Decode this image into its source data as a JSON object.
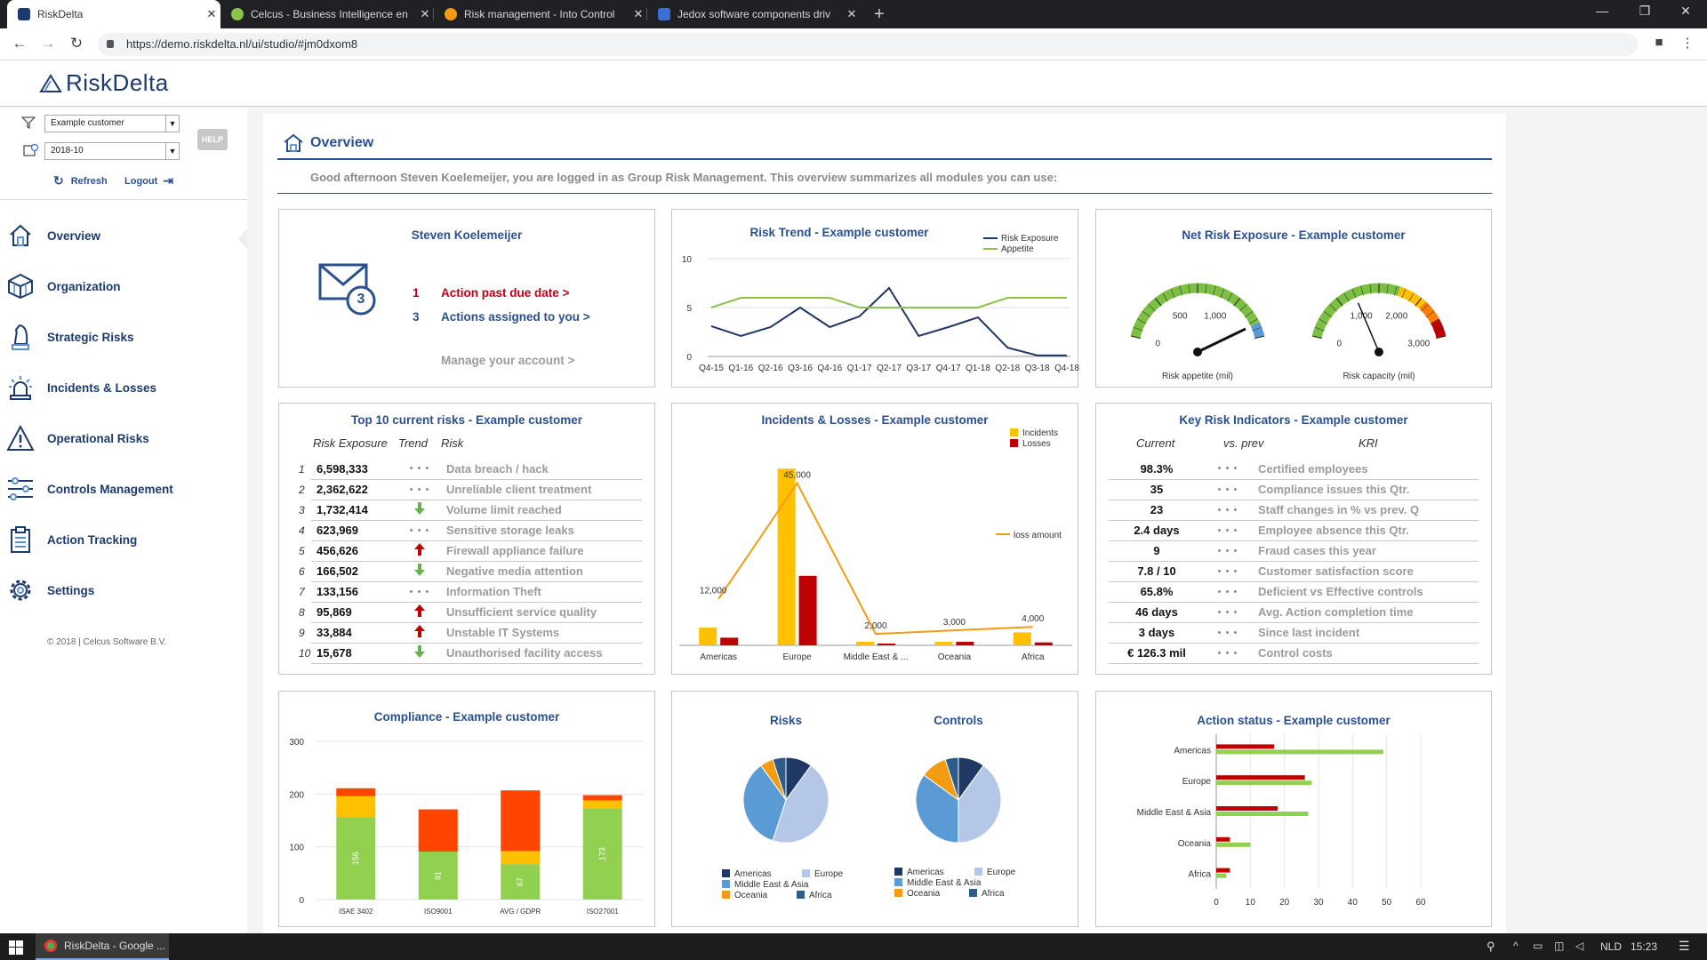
{
  "browser": {
    "tabs": [
      {
        "title": "RiskDelta",
        "active": true,
        "icon": "riskdelta-favicon",
        "color": "#1c3a6e"
      },
      {
        "title": "Celcus - Business Intelligence en",
        "active": false,
        "icon": "celcus-favicon",
        "color": "#8bc34a"
      },
      {
        "title": "Risk management - Into Control",
        "active": false,
        "icon": "intocontrol-favicon",
        "color": "#f39c12"
      },
      {
        "title": "Jedox software components driv",
        "active": false,
        "icon": "jedox-favicon",
        "color": "#3b6fd4"
      }
    ],
    "url": "https://demo.riskdelta.nl/ui/studio/#jm0dxom8"
  },
  "app": {
    "logo": "RiskDelta",
    "customer": "Example customer",
    "period": "2018-10",
    "refresh": "Refresh",
    "logout": "Logout",
    "help": "HELP",
    "nav": [
      {
        "label": "Overview",
        "icon": "home-icon"
      },
      {
        "label": "Organization",
        "icon": "cube-icon"
      },
      {
        "label": "Strategic Risks",
        "icon": "chess-knight-icon"
      },
      {
        "label": "Incidents & Losses",
        "icon": "alarm-light-icon"
      },
      {
        "label": "Operational Risks",
        "icon": "warning-icon"
      },
      {
        "label": "Controls Management",
        "icon": "sliders-icon"
      },
      {
        "label": "Action Tracking",
        "icon": "clipboard-icon"
      },
      {
        "label": "Settings",
        "icon": "gear-icon"
      }
    ],
    "copyright": "© 2018 | Celcus Software B.V."
  },
  "overview": {
    "title": "Overview",
    "greeting": "Good afternoon Steven Koelemeijer, you are logged in as Group Risk Management. This overview summarizes all modules you can use:"
  },
  "user_card": {
    "name": "Steven Koelemeijer",
    "badge": "3",
    "actions": [
      {
        "count": "1",
        "label": "Action past due date >"
      },
      {
        "count": "3",
        "label": "Actions assigned to you >"
      }
    ],
    "manage": "Manage your account >"
  },
  "top_risks": {
    "title": "Top 10 current risks - Example customer",
    "headers": {
      "exposure": "Risk Exposure",
      "trend": "Trend",
      "risk": "Risk"
    },
    "rows": [
      {
        "rank": "1",
        "exposure": "6,598,333",
        "trend": "flat",
        "risk": "Data breach / hack"
      },
      {
        "rank": "2",
        "exposure": "2,362,622",
        "trend": "flat",
        "risk": "Unreliable client treatment"
      },
      {
        "rank": "3",
        "exposure": "1,732,414",
        "trend": "down",
        "risk": "Volume limit reached"
      },
      {
        "rank": "4",
        "exposure": "623,969",
        "trend": "flat",
        "risk": "Sensitive storage leaks"
      },
      {
        "rank": "5",
        "exposure": "456,626",
        "trend": "up",
        "risk": "Firewall appliance failure"
      },
      {
        "rank": "6",
        "exposure": "166,502",
        "trend": "down",
        "risk": "Negative media attention"
      },
      {
        "rank": "7",
        "exposure": "133,156",
        "trend": "flat",
        "risk": "Information Theft"
      },
      {
        "rank": "8",
        "exposure": "95,869",
        "trend": "up",
        "risk": "Unsufficient service quality"
      },
      {
        "rank": "9",
        "exposure": "33,884",
        "trend": "up",
        "risk": "Unstable IT Systems"
      },
      {
        "rank": "10",
        "exposure": "15,678",
        "trend": "down",
        "risk": "Unauthorised facility access"
      }
    ]
  },
  "kri": {
    "title": "Key Risk Indicators - Example customer",
    "headers": {
      "current": "Current",
      "prev": "vs. prev",
      "kri": "KRI"
    },
    "rows": [
      {
        "value": "98.3%",
        "label": "Certified employees"
      },
      {
        "value": "35",
        "label": "Compliance issues this Qtr."
      },
      {
        "value": "23",
        "label": "Staff changes in % vs prev. Q"
      },
      {
        "value": "2.4 days",
        "label": "Employee absence this Qtr."
      },
      {
        "value": "9",
        "label": "Fraud cases this year"
      },
      {
        "value": "7.8 / 10",
        "label": "Customer satisfaction score"
      },
      {
        "value": "65.8%",
        "label": "Deficient vs Effective controls"
      },
      {
        "value": "46 days",
        "label": "Avg. Action completion time"
      },
      {
        "value": "3 days",
        "label": "Since last incident"
      },
      {
        "value": "€ 126.3 mil",
        "label": "Control costs"
      }
    ]
  },
  "colors": {
    "navy": "#1c3a6e",
    "green": "#8bc34a",
    "orange": "#f39c12",
    "red": "#c0001a",
    "yellow": "#ffc000",
    "darkred": "#c00000",
    "compl_orange": "#ff4500",
    "pie_navy": "#1f3864",
    "pie_lightblue": "#b4c7e7",
    "pie_blue": "#5b9bd5"
  },
  "chart_data": [
    {
      "type": "line",
      "title": "Risk Trend - Example customer",
      "x": [
        "Q4-15",
        "Q1-16",
        "Q2-16",
        "Q3-16",
        "Q4-16",
        "Q1-17",
        "Q2-17",
        "Q3-17",
        "Q4-17",
        "Q1-18",
        "Q2-18",
        "Q3-18",
        "Q4-18"
      ],
      "series": [
        {
          "name": "Risk Exposure",
          "values": [
            3.1,
            2.1,
            3.0,
            5.0,
            3.0,
            4.1,
            7.0,
            2.1,
            3.0,
            4.0,
            0.9,
            0.1,
            0.1
          ]
        },
        {
          "name": "Appetite",
          "values": [
            5.0,
            6.0,
            6.0,
            6.0,
            6.0,
            5.0,
            5.0,
            5.0,
            5.0,
            5.0,
            6.0,
            6.0,
            6.0
          ]
        }
      ],
      "yticks": [
        "0",
        "5",
        "10"
      ],
      "ylim": [
        0,
        10
      ]
    },
    {
      "type": "gauge",
      "title": "Net Risk Exposure - Example customer",
      "gauges": [
        {
          "label": "Risk appetite (mil)",
          "ticks": [
            "0",
            "500",
            "1,000"
          ],
          "max": 1500,
          "value": 1380
        },
        {
          "label": "Risk capacity (mil)",
          "ticks": [
            "0",
            "1,000",
            "2,000",
            "3,000"
          ],
          "max": 3000,
          "value": 1050
        }
      ]
    },
    {
      "type": "bar",
      "title": "Incidents & Losses - Example customer",
      "categories": [
        "Americas",
        "Europe",
        "Middle East & ...",
        "Oceania",
        "Africa"
      ],
      "series": [
        {
          "name": "Incidents",
          "values": [
            3,
            30,
            0.6,
            0.6,
            2.2
          ]
        },
        {
          "name": "Losses",
          "values": [
            1.3,
            11.8,
            0.3,
            0.6,
            0.5
          ]
        }
      ],
      "line": {
        "name": "loss amount",
        "values": [
          12000,
          45000,
          2000,
          3000,
          4000
        ],
        "labels": [
          "12,000",
          "45,000",
          "2,000",
          "3,000",
          "4,000"
        ]
      },
      "ymax": 32
    },
    {
      "type": "bar",
      "title": "Compliance - Example customer",
      "categories": [
        "ISAE 3402",
        "ISO9001",
        "AVG / GDPR",
        "ISO27001"
      ],
      "yticks": [
        "0",
        "100",
        "200",
        "300"
      ],
      "ymax": 300,
      "stacks": [
        {
          "green": 156,
          "yellow": 40,
          "orange": 15,
          "label": "156"
        },
        {
          "green": 91,
          "yellow": 0,
          "orange": 80,
          "label": "91"
        },
        {
          "green": 67,
          "yellow": 25,
          "orange": 115,
          "label": "67"
        },
        {
          "green": 173,
          "yellow": 15,
          "orange": 10,
          "label": "173"
        }
      ]
    },
    {
      "type": "pie",
      "pies": [
        {
          "title": "Risks",
          "values": [
            {
              "name": "Americas",
              "value": 10
            },
            {
              "name": "Europe",
              "value": 45
            },
            {
              "name": "Middle East & Asia",
              "value": 35
            },
            {
              "name": "Oceania",
              "value": 5
            },
            {
              "name": "Africa",
              "value": 5
            }
          ]
        },
        {
          "title": "Controls",
          "values": [
            {
              "name": "Americas",
              "value": 10
            },
            {
              "name": "Europe",
              "value": 40
            },
            {
              "name": "Middle East & Asia",
              "value": 35
            },
            {
              "name": "Oceania",
              "value": 10
            },
            {
              "name": "Africa",
              "value": 5
            }
          ]
        }
      ],
      "legend": [
        "Americas",
        "Europe",
        "Middle East & Asia",
        "Oceania",
        "Africa"
      ]
    },
    {
      "type": "bar",
      "title": "Action status - Example customer",
      "orientation": "horizontal",
      "categories": [
        "Americas",
        "Europe",
        "Middle East & Asia",
        "Oceania",
        "Africa"
      ],
      "series": [
        {
          "name": "overdue",
          "values": [
            17,
            26,
            18,
            4,
            4
          ]
        },
        {
          "name": "open",
          "values": [
            49,
            28,
            27,
            10,
            3
          ]
        }
      ],
      "xticks": [
        "0",
        "10",
        "20",
        "30",
        "40",
        "50",
        "60"
      ],
      "xlim": [
        0,
        60
      ]
    }
  ],
  "taskbar": {
    "app": "RiskDelta - Google ...",
    "lang": "NLD",
    "time": "15:23"
  }
}
